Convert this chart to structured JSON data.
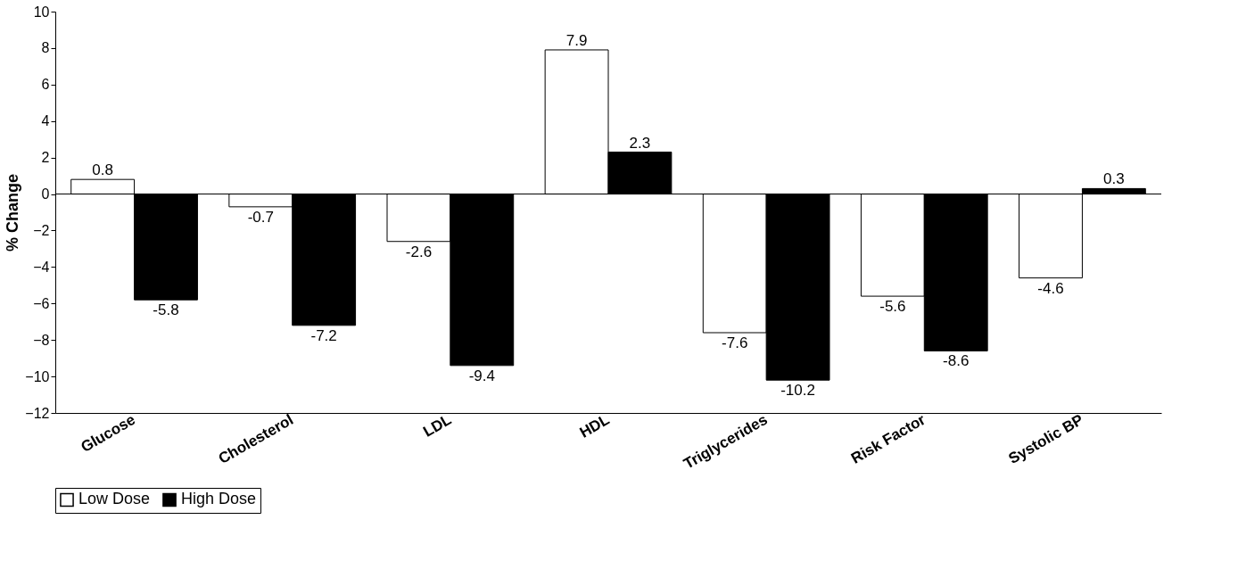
{
  "chart_data": {
    "type": "bar",
    "ylabel": "% Change",
    "categories": [
      "Glucose",
      "Cholesterol",
      "LDL",
      "HDL",
      "Triglycerides",
      "Risk Factor",
      "Systolic BP"
    ],
    "series": [
      {
        "name": "Low Dose",
        "color": "#ffffff",
        "values": [
          0.8,
          -0.7,
          -2.6,
          7.9,
          -7.6,
          -5.6,
          -4.6
        ]
      },
      {
        "name": "High Dose",
        "color": "#000000",
        "values": [
          -5.8,
          -7.2,
          -9.4,
          2.3,
          -10.2,
          -8.6,
          0.3
        ]
      }
    ],
    "ylim": [
      -12,
      10
    ],
    "yticks": [
      -12,
      -10,
      -8,
      -6,
      -4,
      -2,
      0,
      2,
      4,
      6,
      8,
      10
    ],
    "ref_lines": [
      {
        "axis": "y",
        "value": 0,
        "color": "#000000"
      }
    ],
    "data_labels": true,
    "legend": "bottom",
    "grid": false
  }
}
